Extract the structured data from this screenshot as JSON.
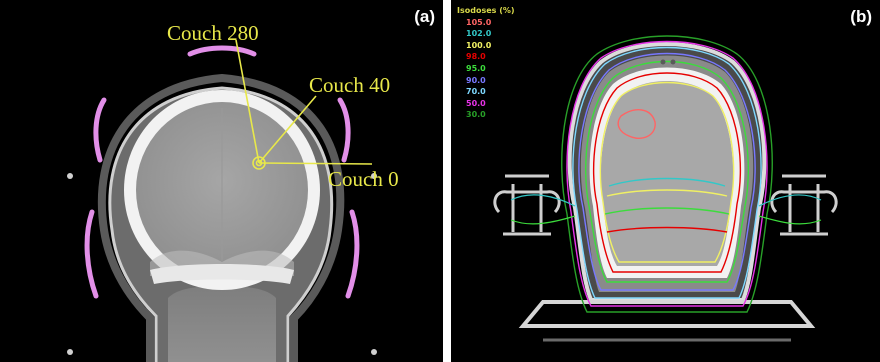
{
  "panel_a": {
    "label": "(a)",
    "annotations": [
      {
        "text": "Couch 280"
      },
      {
        "text": "Couch 40"
      },
      {
        "text": "Couch 0"
      }
    ]
  },
  "panel_b": {
    "label": "(b)",
    "legend": {
      "title": "Isodoses (%)",
      "items": [
        {
          "value": "105.0",
          "color": "#ff6464"
        },
        {
          "value": "102.0",
          "color": "#32c8c8"
        },
        {
          "value": "100.0",
          "color": "#f0f064"
        },
        {
          "value": "98.0",
          "color": "#e60000"
        },
        {
          "value": "95.0",
          "color": "#3cdc3c"
        },
        {
          "value": "90.0",
          "color": "#7878ff"
        },
        {
          "value": "70.0",
          "color": "#7ed8ff"
        },
        {
          "value": "50.0",
          "color": "#e632e6"
        },
        {
          "value": "30.0",
          "color": "#28a028"
        }
      ]
    }
  },
  "colors": {
    "annotation": "#e8e84a",
    "coil_marker": "#e28fe8",
    "ct_background": "#000000"
  }
}
